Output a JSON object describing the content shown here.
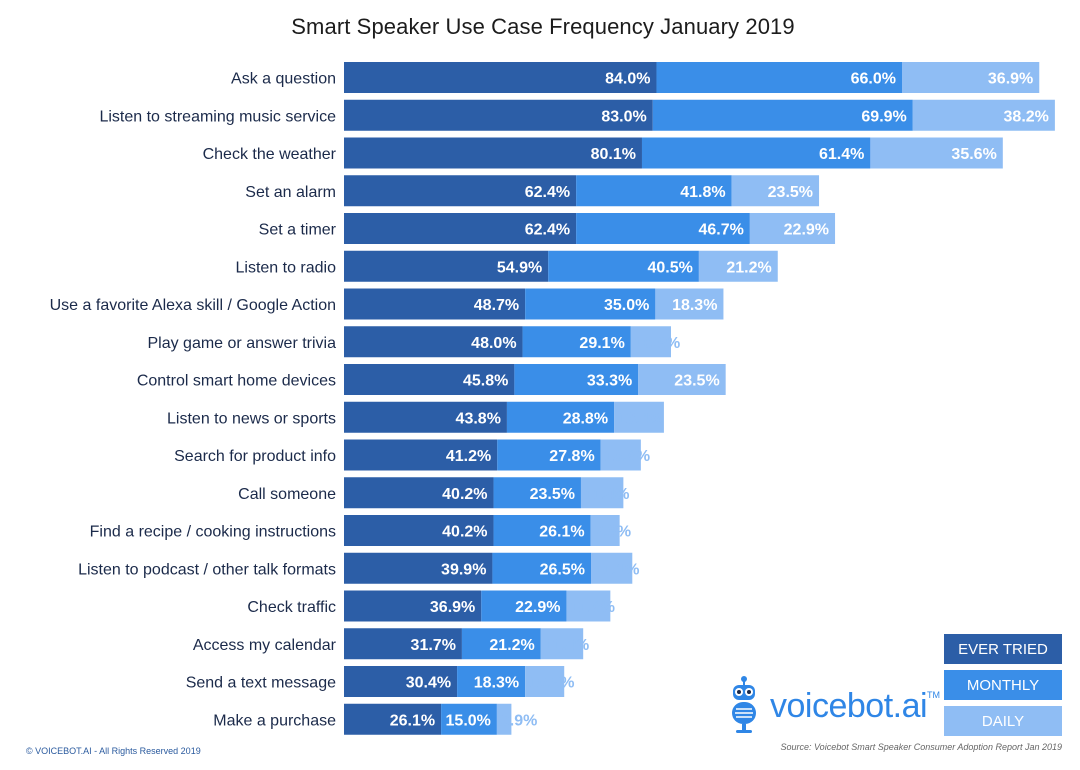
{
  "title": "Smart Speaker Use Case Frequency January 2019",
  "colors": {
    "ever_tried": "#2c5ea7",
    "monthly": "#3a8ee8",
    "daily": "#8fbdf4",
    "category_text": "#1b2a4a"
  },
  "legend": [
    {
      "label": "EVER TRIED",
      "color": "#2c5ea7"
    },
    {
      "label": "MONTHLY",
      "color": "#3a8ee8"
    },
    {
      "label": "DAILY",
      "color": "#8fbdf4"
    }
  ],
  "logo": {
    "text": "voicebot.ai",
    "tm": "TM",
    "icon": "robot-microphone-icon"
  },
  "footer": {
    "copyright": "© VOICEBOT.AI - All Rights Reserved 2019",
    "source": "Source: Voicebot Smart Speaker Consumer Adoption Report Jan 2019"
  },
  "chart_data": {
    "type": "bar",
    "orientation": "horizontal",
    "stacked": true,
    "title": "Smart Speaker Use Case Frequency January 2019",
    "categories": [
      "Ask a question",
      "Listen to streaming music service",
      "Check the weather",
      "Set an alarm",
      "Set a timer",
      "Listen to radio",
      "Use a favorite Alexa skill / Google Action",
      "Play game or answer trivia",
      "Control smart home devices",
      "Listen to news or sports",
      "Search for product info",
      "Call someone",
      "Find a recipe / cooking instructions",
      "Listen to podcast / other talk formats",
      "Check traffic",
      "Access my calendar",
      "Send a text message",
      "Make a purchase"
    ],
    "series": [
      {
        "name": "EVER TRIED",
        "values": [
          84.0,
          83.0,
          80.1,
          62.4,
          62.4,
          54.9,
          48.7,
          48.0,
          45.8,
          43.8,
          41.2,
          40.2,
          40.2,
          39.9,
          36.9,
          31.7,
          30.4,
          26.1
        ],
        "labels": [
          "84.0%",
          "83.0%",
          "80.1%",
          "62.4%",
          "62.4%",
          "54.9%",
          "48.7%",
          "48.0%",
          "45.8%",
          "43.8%",
          "41.2%",
          "40.2%",
          "40.2%",
          "39.9%",
          "36.9%",
          "31.7%",
          "30.4%",
          "26.1%"
        ]
      },
      {
        "name": "MONTHLY",
        "values": [
          66.0,
          69.9,
          61.4,
          41.8,
          46.7,
          40.5,
          35.0,
          29.1,
          33.3,
          28.8,
          27.8,
          23.5,
          26.1,
          26.5,
          22.9,
          21.2,
          18.3,
          15.0
        ],
        "labels": [
          "66.0%",
          "69.9%",
          "61.4%",
          "41.8%",
          "46.7%",
          "40.5%",
          "35.0%",
          "29.1%",
          "33.3%",
          "28.8%",
          "27.8%",
          "23.5%",
          "26.1%",
          "26.5%",
          "22.9%",
          "21.2%",
          "18.3%",
          "15.0%"
        ]
      },
      {
        "name": "DAILY",
        "values": [
          36.9,
          38.2,
          35.6,
          23.5,
          22.9,
          21.2,
          18.3,
          10.8,
          23.5,
          13.4,
          10.8,
          11.4,
          7.8,
          11.1,
          11.8,
          11.4,
          10.5,
          3.9
        ],
        "labels": [
          "36.9%",
          "38.2%",
          "35.6%",
          "23.5%",
          "22.9%",
          "21.2%",
          "18.3%",
          "10.8%",
          "23.5%",
          "13.4%",
          "10.8%",
          "11.4%",
          "7.8%",
          "11.1%",
          "11.8%",
          "11.4%",
          "10.5%",
          "3.9%"
        ]
      }
    ],
    "legend_position": "bottom-right",
    "grid": false
  }
}
